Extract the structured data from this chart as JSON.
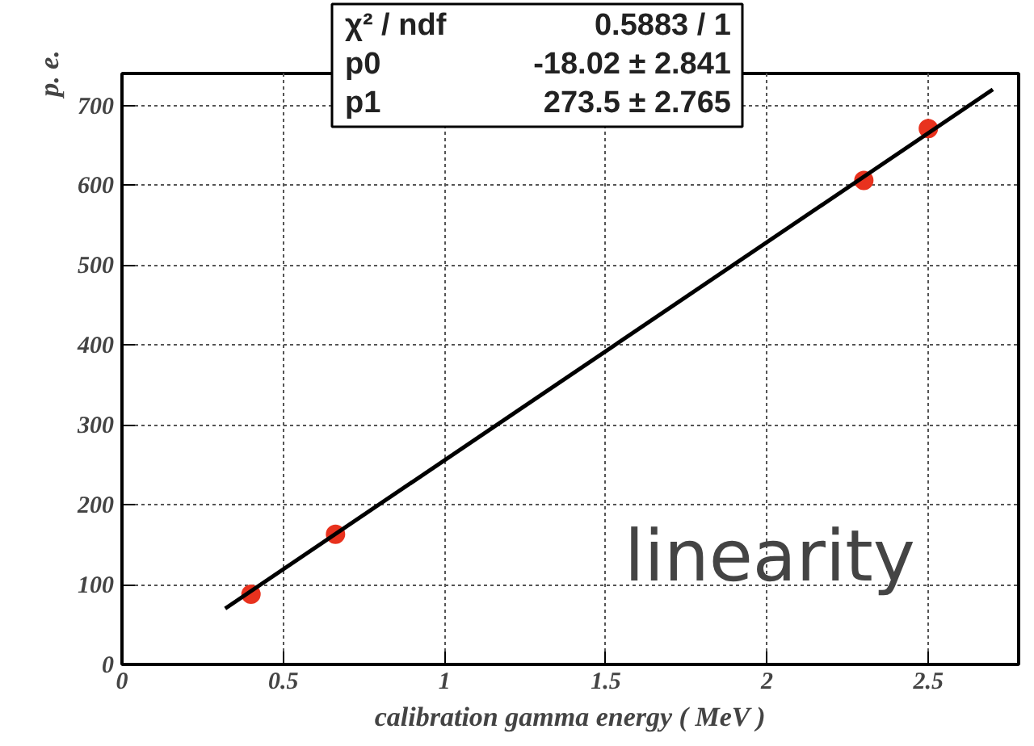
{
  "chart_data": {
    "type": "scatter",
    "xlabel": "calibration gamma energy ( MeV )",
    "ylabel": "p. e.",
    "annotations": [
      "χ² / ndf",
      "0.5883 / 1",
      "p0",
      "-18.02 ± 2.841",
      "p1",
      "273.5 ± 2.765",
      "linearity"
    ],
    "series": [
      {
        "color": "#e8321e",
        "x": [
          0.4,
          0.662,
          2.3,
          2.5
        ],
        "values": [
          88,
          163,
          606,
          671
        ],
        "marker": "circle"
      },
      {
        "type": "line",
        "color": "#000000",
        "x": [
          0.32,
          2.7
        ],
        "values": [
          70,
          720
        ],
        "line_style": "solid"
      }
    ],
    "xlim": [
      0,
      2.78
    ],
    "ylim": [
      0,
      740
    ],
    "xticks": [
      0,
      0.5,
      1,
      1.5,
      2,
      2.5
    ],
    "yticks": [
      0,
      100,
      200,
      300,
      400,
      500,
      600,
      700
    ],
    "grid": true
  }
}
